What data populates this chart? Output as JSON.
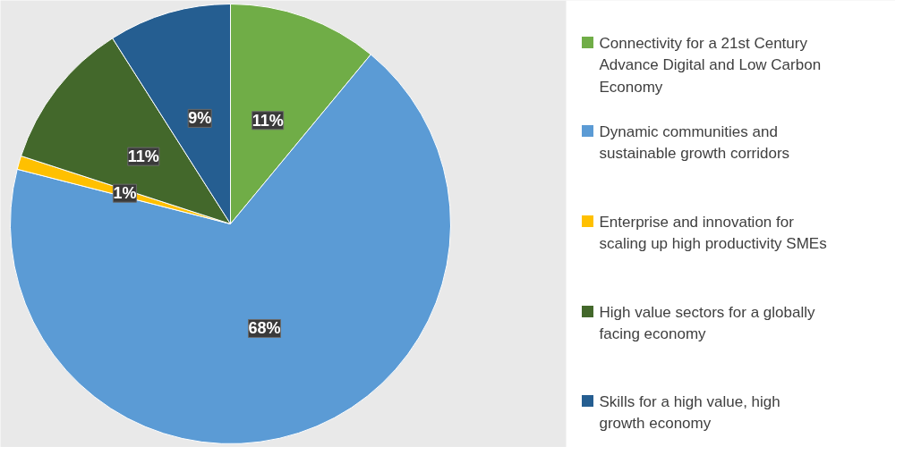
{
  "chart_data": {
    "type": "pie",
    "categories": [
      "Connectivity for a 21st Century Advance Digital and Low Carbon Economy",
      "Dynamic communities and sustainable growth corridors",
      "Enterprise and innovation for scaling up high productivity SMEs",
      "High value sectors for a globally facing economy",
      "Skills for a high value, high growth economy"
    ],
    "values": [
      11,
      68,
      1,
      11,
      9
    ],
    "value_labels": [
      "11%",
      "68%",
      "1%",
      "11%",
      "9%"
    ],
    "colors": [
      "#70ad47",
      "#5b9bd5",
      "#ffc000",
      "#43682b",
      "#255e91"
    ],
    "legend": "right"
  }
}
